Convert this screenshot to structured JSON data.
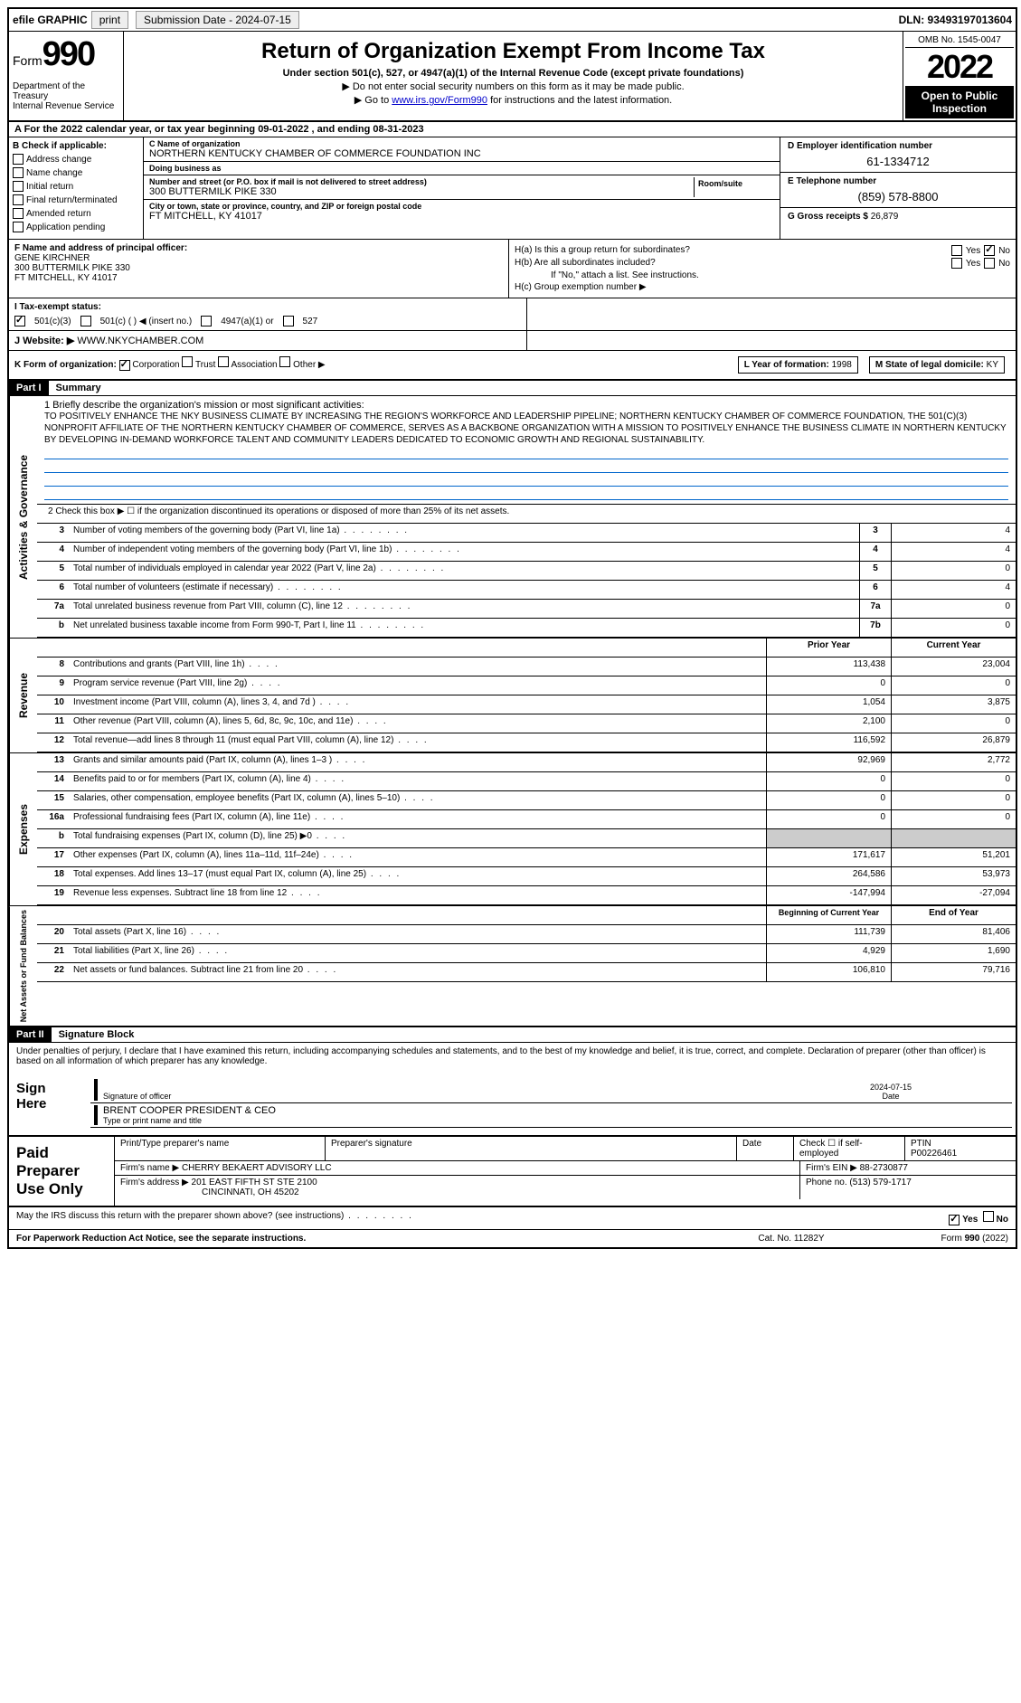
{
  "header": {
    "efile": "efile GRAPHIC",
    "print": "print",
    "submission_label": "Submission Date - 2024-07-15",
    "dln": "DLN: 93493197013604"
  },
  "top": {
    "form_word": "Form",
    "form_num": "990",
    "dept": "Department of the Treasury\nInternal Revenue Service",
    "title": "Return of Organization Exempt From Income Tax",
    "subtitle": "Under section 501(c), 527, or 4947(a)(1) of the Internal Revenue Code (except private foundations)",
    "line1": "▶ Do not enter social security numbers on this form as it may be made public.",
    "line2_pre": "▶ Go to ",
    "line2_link": "www.irs.gov/Form990",
    "line2_post": " for instructions and the latest information.",
    "omb": "OMB No. 1545-0047",
    "year": "2022",
    "open": "Open to Public Inspection"
  },
  "row_a": "A  For the 2022 calendar year, or tax year beginning 09-01-2022    , and ending 08-31-2023",
  "col_b": {
    "header": "B Check if applicable:",
    "items": [
      "Address change",
      "Name change",
      "Initial return",
      "Final return/terminated",
      "Amended return",
      "Application pending"
    ]
  },
  "col_c": {
    "name_label": "C Name of organization",
    "name": "NORTHERN KENTUCKY CHAMBER OF COMMERCE FOUNDATION INC",
    "dba_label": "Doing business as",
    "dba": "",
    "addr_label": "Number and street (or P.O. box if mail is not delivered to street address)",
    "addr": "300 BUTTERMILK PIKE 330",
    "room_label": "Room/suite",
    "city_label": "City or town, state or province, country, and ZIP or foreign postal code",
    "city": "FT MITCHELL, KY  41017"
  },
  "col_d": {
    "ein_label": "D Employer identification number",
    "ein": "61-1334712",
    "phone_label": "E Telephone number",
    "phone": "(859) 578-8800",
    "gross_label": "G Gross receipts $",
    "gross": "26,879"
  },
  "row_f": {
    "label": "F  Name and address of principal officer:",
    "name": "GENE KIRCHNER",
    "addr1": "300 BUTTERMILK PIKE 330",
    "addr2": "FT MITCHELL, KY  41017"
  },
  "row_h": {
    "ha_label": "H(a)  Is this a group return for subordinates?",
    "hb_label": "H(b)  Are all subordinates included?",
    "hb_note": "If \"No,\" attach a list. See instructions.",
    "hc_label": "H(c)  Group exemption number ▶",
    "yes": "Yes",
    "no": "No"
  },
  "row_i": {
    "label": "I   Tax-exempt status:",
    "opt1": "501(c)(3)",
    "opt2": "501(c) (   ) ◀ (insert no.)",
    "opt3": "4947(a)(1) or",
    "opt4": "527"
  },
  "row_j": {
    "label": "J   Website: ▶",
    "val": "WWW.NKYCHAMBER.COM"
  },
  "row_k": {
    "label": "K Form of organization:",
    "opts": [
      "Corporation",
      "Trust",
      "Association",
      "Other ▶"
    ],
    "l_label": "L Year of formation:",
    "l_val": "1998",
    "m_label": "M State of legal domicile:",
    "m_val": "KY"
  },
  "part1": {
    "header": "Part I",
    "title": "Summary",
    "tab_gov": "Activities & Governance",
    "tab_rev": "Revenue",
    "tab_exp": "Expenses",
    "tab_net": "Net Assets or Fund Balances",
    "mission_label": "1   Briefly describe the organization's mission or most significant activities:",
    "mission": "TO POSITIVELY ENHANCE THE NKY BUSINESS CLIMATE BY INCREASING THE REGION'S WORKFORCE AND LEADERSHIP PIPELINE; NORTHERN KENTUCKY CHAMBER OF COMMERCE FOUNDATION, THE 501(C)(3) NONPROFIT AFFILIATE OF THE NORTHERN KENTUCKY CHAMBER OF COMMERCE, SERVES AS A BACKBONE ORGANIZATION WITH A MISSION TO POSITIVELY ENHANCE THE BUSINESS CLIMATE IN NORTHERN KENTUCKY BY DEVELOPING IN-DEMAND WORKFORCE TALENT AND COMMUNITY LEADERS DEDICATED TO ECONOMIC GROWTH AND REGIONAL SUSTAINABILITY.",
    "line2": "2   Check this box ▶ ☐  if the organization discontinued its operations or disposed of more than 25% of its net assets.",
    "gov_rows": [
      {
        "n": "3",
        "desc": "Number of voting members of the governing body (Part VI, line 1a)",
        "box": "3",
        "val": "4"
      },
      {
        "n": "4",
        "desc": "Number of independent voting members of the governing body (Part VI, line 1b)",
        "box": "4",
        "val": "4"
      },
      {
        "n": "5",
        "desc": "Total number of individuals employed in calendar year 2022 (Part V, line 2a)",
        "box": "5",
        "val": "0"
      },
      {
        "n": "6",
        "desc": "Total number of volunteers (estimate if necessary)",
        "box": "6",
        "val": "4"
      },
      {
        "n": "7a",
        "desc": "Total unrelated business revenue from Part VIII, column (C), line 12",
        "box": "7a",
        "val": "0"
      },
      {
        "n": "b",
        "desc": "Net unrelated business taxable income from Form 990-T, Part I, line 11",
        "box": "7b",
        "val": "0"
      }
    ],
    "year_header": {
      "prior": "Prior Year",
      "curr": "Current Year"
    },
    "rev_rows": [
      {
        "n": "8",
        "desc": "Contributions and grants (Part VIII, line 1h)",
        "prior": "113,438",
        "curr": "23,004"
      },
      {
        "n": "9",
        "desc": "Program service revenue (Part VIII, line 2g)",
        "prior": "0",
        "curr": "0"
      },
      {
        "n": "10",
        "desc": "Investment income (Part VIII, column (A), lines 3, 4, and 7d )",
        "prior": "1,054",
        "curr": "3,875"
      },
      {
        "n": "11",
        "desc": "Other revenue (Part VIII, column (A), lines 5, 6d, 8c, 9c, 10c, and 11e)",
        "prior": "2,100",
        "curr": "0"
      },
      {
        "n": "12",
        "desc": "Total revenue—add lines 8 through 11 (must equal Part VIII, column (A), line 12)",
        "prior": "116,592",
        "curr": "26,879"
      }
    ],
    "exp_rows": [
      {
        "n": "13",
        "desc": "Grants and similar amounts paid (Part IX, column (A), lines 1–3 )",
        "prior": "92,969",
        "curr": "2,772"
      },
      {
        "n": "14",
        "desc": "Benefits paid to or for members (Part IX, column (A), line 4)",
        "prior": "0",
        "curr": "0"
      },
      {
        "n": "15",
        "desc": "Salaries, other compensation, employee benefits (Part IX, column (A), lines 5–10)",
        "prior": "0",
        "curr": "0"
      },
      {
        "n": "16a",
        "desc": "Professional fundraising fees (Part IX, column (A), line 11e)",
        "prior": "0",
        "curr": "0"
      },
      {
        "n": "b",
        "desc": "Total fundraising expenses (Part IX, column (D), line 25) ▶0",
        "prior": "",
        "curr": "",
        "shaded": true
      },
      {
        "n": "17",
        "desc": "Other expenses (Part IX, column (A), lines 11a–11d, 11f–24e)",
        "prior": "171,617",
        "curr": "51,201"
      },
      {
        "n": "18",
        "desc": "Total expenses. Add lines 13–17 (must equal Part IX, column (A), line 25)",
        "prior": "264,586",
        "curr": "53,973"
      },
      {
        "n": "19",
        "desc": "Revenue less expenses. Subtract line 18 from line 12",
        "prior": "-147,994",
        "curr": "-27,094"
      }
    ],
    "net_header": {
      "prior": "Beginning of Current Year",
      "curr": "End of Year"
    },
    "net_rows": [
      {
        "n": "20",
        "desc": "Total assets (Part X, line 16)",
        "prior": "111,739",
        "curr": "81,406"
      },
      {
        "n": "21",
        "desc": "Total liabilities (Part X, line 26)",
        "prior": "4,929",
        "curr": "1,690"
      },
      {
        "n": "22",
        "desc": "Net assets or fund balances. Subtract line 21 from line 20",
        "prior": "106,810",
        "curr": "79,716"
      }
    ]
  },
  "part2": {
    "header": "Part II",
    "title": "Signature Block",
    "intro": "Under penalties of perjury, I declare that I have examined this return, including accompanying schedules and statements, and to the best of my knowledge and belief, it is true, correct, and complete. Declaration of preparer (other than officer) is based on all information of which preparer has any knowledge.",
    "sign_here": "Sign Here",
    "sig_officer": "Signature of officer",
    "sig_date_label": "Date",
    "sig_date": "2024-07-15",
    "officer_name": "BRENT COOPER  PRESIDENT & CEO",
    "type_label": "Type or print name and title",
    "paid_label": "Paid Preparer Use Only",
    "prep_name_label": "Print/Type preparer's name",
    "prep_sig_label": "Preparer's signature",
    "prep_date_label": "Date",
    "prep_check": "Check ☐ if self-employed",
    "ptin_label": "PTIN",
    "ptin": "P00226461",
    "firm_name_label": "Firm's name    ▶",
    "firm_name": "CHERRY BEKAERT ADVISORY LLC",
    "firm_ein_label": "Firm's EIN ▶",
    "firm_ein": "88-2730877",
    "firm_addr_label": "Firm's address ▶",
    "firm_addr": "201 EAST FIFTH ST STE 2100",
    "firm_city": "CINCINNATI, OH  45202",
    "firm_phone_label": "Phone no.",
    "firm_phone": "(513) 579-1717"
  },
  "footer": {
    "discuss": "May the IRS discuss this return with the preparer shown above? (see instructions)",
    "yes": "Yes",
    "no": "No",
    "pra": "For Paperwork Reduction Act Notice, see the separate instructions.",
    "cat": "Cat. No. 11282Y",
    "form": "Form 990 (2022)"
  }
}
